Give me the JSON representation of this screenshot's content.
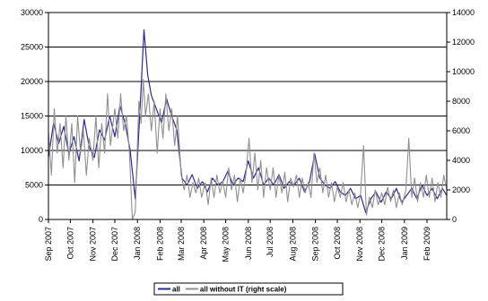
{
  "chart_data": {
    "type": "line",
    "title": "",
    "xlabel": "",
    "ylabel": "",
    "ylim_left": [
      0,
      30000
    ],
    "ylim_right": [
      0,
      14000
    ],
    "y_ticks_left": [
      "0",
      "5000",
      "10000",
      "15000",
      "20000",
      "25000",
      "30000"
    ],
    "y_ticks_right": [
      "0",
      "2000",
      "4000",
      "6000",
      "8000",
      "10000",
      "12000",
      "14000"
    ],
    "x_ticks": [
      "Sep 2007",
      "Oct 2007",
      "Nov 2007",
      "Dec 2007",
      "Jan 2008",
      "Feb 2008",
      "Mar 2008",
      "Apr 2008",
      "May 2008",
      "Jun 2008",
      "Jul 2008",
      "Aug 2008",
      "Sep 2008",
      "Oct 2008",
      "Nov 2008",
      "Dec 2008",
      "Jan 2009",
      "Feb 2009"
    ],
    "x_range": [
      "2007-09-01",
      "2009-02-28"
    ],
    "grid": "horizontal",
    "legend_position": "bottom",
    "series": [
      {
        "name": "all",
        "axis": "left",
        "color": "#2b2b8f",
        "points": [
          [
            "2007-09-01",
            9000
          ],
          [
            "2007-09-08",
            14000
          ],
          [
            "2007-09-15",
            11000
          ],
          [
            "2007-09-22",
            13500
          ],
          [
            "2007-09-29",
            9500
          ],
          [
            "2007-10-06",
            12000
          ],
          [
            "2007-10-13",
            8500
          ],
          [
            "2007-10-20",
            14500
          ],
          [
            "2007-10-27",
            10500
          ],
          [
            "2007-11-03",
            9000
          ],
          [
            "2007-11-10",
            13000
          ],
          [
            "2007-11-17",
            11500
          ],
          [
            "2007-11-24",
            15000
          ],
          [
            "2007-12-01",
            12000
          ],
          [
            "2007-12-08",
            16500
          ],
          [
            "2007-12-15",
            14000
          ],
          [
            "2007-12-22",
            10000
          ],
          [
            "2007-12-29",
            3000
          ],
          [
            "2008-01-05",
            17000
          ],
          [
            "2008-01-10",
            27500
          ],
          [
            "2008-01-15",
            21000
          ],
          [
            "2008-01-20",
            18000
          ],
          [
            "2008-01-27",
            16000
          ],
          [
            "2008-02-03",
            14000
          ],
          [
            "2008-02-10",
            17500
          ],
          [
            "2008-02-17",
            15000
          ],
          [
            "2008-02-24",
            13000
          ],
          [
            "2008-03-02",
            6000
          ],
          [
            "2008-03-09",
            5000
          ],
          [
            "2008-03-16",
            6500
          ],
          [
            "2008-03-23",
            4500
          ],
          [
            "2008-03-30",
            5500
          ],
          [
            "2008-04-06",
            4000
          ],
          [
            "2008-04-13",
            6000
          ],
          [
            "2008-04-20",
            5000
          ],
          [
            "2008-04-27",
            5500
          ],
          [
            "2008-05-04",
            7000
          ],
          [
            "2008-05-11",
            5000
          ],
          [
            "2008-05-18",
            6000
          ],
          [
            "2008-05-25",
            5500
          ],
          [
            "2008-06-01",
            8500
          ],
          [
            "2008-06-08",
            6000
          ],
          [
            "2008-06-15",
            7500
          ],
          [
            "2008-06-22",
            5000
          ],
          [
            "2008-06-29",
            6000
          ],
          [
            "2008-07-06",
            5000
          ],
          [
            "2008-07-13",
            6500
          ],
          [
            "2008-07-20",
            4500
          ],
          [
            "2008-07-27",
            5500
          ],
          [
            "2008-08-03",
            5000
          ],
          [
            "2008-08-10",
            6000
          ],
          [
            "2008-08-17",
            4000
          ],
          [
            "2008-08-24",
            5500
          ],
          [
            "2008-08-31",
            9500
          ],
          [
            "2008-09-07",
            6000
          ],
          [
            "2008-09-14",
            5000
          ],
          [
            "2008-09-21",
            4500
          ],
          [
            "2008-09-28",
            5500
          ],
          [
            "2008-10-05",
            4000
          ],
          [
            "2008-10-12",
            3500
          ],
          [
            "2008-10-19",
            4500
          ],
          [
            "2008-10-26",
            3000
          ],
          [
            "2008-11-02",
            3500
          ],
          [
            "2008-11-09",
            1000
          ],
          [
            "2008-11-16",
            3000
          ],
          [
            "2008-11-23",
            4000
          ],
          [
            "2008-11-30",
            2500
          ],
          [
            "2008-12-07",
            4000
          ],
          [
            "2008-12-14",
            3000
          ],
          [
            "2008-12-21",
            4500
          ],
          [
            "2008-12-28",
            2500
          ],
          [
            "2009-01-04",
            3500
          ],
          [
            "2009-01-11",
            4500
          ],
          [
            "2009-01-18",
            3000
          ],
          [
            "2009-01-25",
            5000
          ],
          [
            "2009-02-01",
            3500
          ],
          [
            "2009-02-08",
            4500
          ],
          [
            "2009-02-15",
            3000
          ],
          [
            "2009-02-22",
            4500
          ],
          [
            "2009-02-28",
            3500
          ]
        ]
      },
      {
        "name": "all without IT (right scale)",
        "axis": "right",
        "color": "#909090",
        "points": [
          [
            "2007-09-01",
            6000
          ],
          [
            "2007-09-05",
            3000
          ],
          [
            "2007-09-09",
            7500
          ],
          [
            "2007-09-13",
            4500
          ],
          [
            "2007-09-17",
            6500
          ],
          [
            "2007-09-21",
            3500
          ],
          [
            "2007-09-25",
            7000
          ],
          [
            "2007-09-29",
            4000
          ],
          [
            "2007-10-03",
            6500
          ],
          [
            "2007-10-07",
            2500
          ],
          [
            "2007-10-11",
            7000
          ],
          [
            "2007-10-15",
            4500
          ],
          [
            "2007-10-19",
            6000
          ],
          [
            "2007-10-23",
            3000
          ],
          [
            "2007-10-27",
            5500
          ],
          [
            "2007-11-01",
            4000
          ],
          [
            "2007-11-05",
            7000
          ],
          [
            "2007-11-09",
            3500
          ],
          [
            "2007-11-13",
            6500
          ],
          [
            "2007-11-17",
            4500
          ],
          [
            "2007-11-21",
            8500
          ],
          [
            "2007-11-25",
            5000
          ],
          [
            "2007-12-01",
            7500
          ],
          [
            "2007-12-05",
            5500
          ],
          [
            "2007-12-09",
            8500
          ],
          [
            "2007-12-13",
            6000
          ],
          [
            "2007-12-17",
            7000
          ],
          [
            "2007-12-21",
            4500
          ],
          [
            "2007-12-25",
            0
          ],
          [
            "2007-12-29",
            500
          ],
          [
            "2008-01-03",
            8000
          ],
          [
            "2008-01-06",
            6500
          ],
          [
            "2008-01-09",
            9500
          ],
          [
            "2008-01-12",
            7000
          ],
          [
            "2008-01-16",
            8500
          ],
          [
            "2008-01-20",
            6000
          ],
          [
            "2008-01-24",
            8000
          ],
          [
            "2008-01-28",
            4500
          ],
          [
            "2008-02-01",
            7500
          ],
          [
            "2008-02-05",
            5500
          ],
          [
            "2008-02-09",
            8500
          ],
          [
            "2008-02-13",
            6000
          ],
          [
            "2008-02-17",
            7500
          ],
          [
            "2008-02-21",
            5000
          ],
          [
            "2008-02-25",
            7000
          ],
          [
            "2008-03-01",
            3000
          ],
          [
            "2008-03-05",
            2000
          ],
          [
            "2008-03-09",
            3000
          ],
          [
            "2008-03-13",
            1500
          ],
          [
            "2008-03-17",
            2500
          ],
          [
            "2008-03-21",
            1800
          ],
          [
            "2008-03-25",
            2800
          ],
          [
            "2008-03-29",
            1500
          ],
          [
            "2008-04-03",
            2500
          ],
          [
            "2008-04-07",
            1000
          ],
          [
            "2008-04-11",
            2800
          ],
          [
            "2008-04-15",
            1500
          ],
          [
            "2008-04-19",
            3000
          ],
          [
            "2008-04-23",
            1800
          ],
          [
            "2008-04-27",
            2600
          ],
          [
            "2008-05-01",
            1500
          ],
          [
            "2008-05-05",
            3500
          ],
          [
            "2008-05-09",
            2000
          ],
          [
            "2008-05-13",
            3000
          ],
          [
            "2008-05-17",
            1200
          ],
          [
            "2008-05-21",
            2800
          ],
          [
            "2008-05-25",
            1800
          ],
          [
            "2008-05-29",
            3200
          ],
          [
            "2008-06-02",
            5500
          ],
          [
            "2008-06-06",
            2500
          ],
          [
            "2008-06-10",
            4500
          ],
          [
            "2008-06-14",
            2000
          ],
          [
            "2008-06-18",
            4000
          ],
          [
            "2008-06-22",
            1500
          ],
          [
            "2008-06-26",
            3500
          ],
          [
            "2008-07-01",
            2000
          ],
          [
            "2008-07-05",
            3500
          ],
          [
            "2008-07-09",
            1500
          ],
          [
            "2008-07-13",
            3000
          ],
          [
            "2008-07-17",
            1800
          ],
          [
            "2008-07-21",
            3200
          ],
          [
            "2008-07-25",
            1200
          ],
          [
            "2008-07-29",
            2800
          ],
          [
            "2008-08-02",
            2200
          ],
          [
            "2008-08-06",
            3000
          ],
          [
            "2008-08-10",
            1500
          ],
          [
            "2008-08-14",
            2800
          ],
          [
            "2008-08-18",
            1800
          ],
          [
            "2008-08-22",
            2500
          ],
          [
            "2008-08-26",
            1500
          ],
          [
            "2008-08-30",
            4500
          ],
          [
            "2008-09-03",
            2500
          ],
          [
            "2008-09-07",
            3500
          ],
          [
            "2008-09-11",
            1800
          ],
          [
            "2008-09-15",
            3000
          ],
          [
            "2008-09-19",
            1500
          ],
          [
            "2008-09-23",
            2500
          ],
          [
            "2008-09-27",
            1200
          ],
          [
            "2008-10-01",
            2200
          ],
          [
            "2008-10-05",
            1500
          ],
          [
            "2008-10-09",
            2500
          ],
          [
            "2008-10-13",
            1200
          ],
          [
            "2008-10-17",
            2000
          ],
          [
            "2008-10-21",
            1000
          ],
          [
            "2008-10-25",
            1800
          ],
          [
            "2008-10-29",
            800
          ],
          [
            "2008-11-02",
            1800
          ],
          [
            "2008-11-06",
            5000
          ],
          [
            "2008-11-10",
            300
          ],
          [
            "2008-11-14",
            1500
          ],
          [
            "2008-11-18",
            800
          ],
          [
            "2008-11-22",
            2000
          ],
          [
            "2008-11-26",
            1000
          ],
          [
            "2008-12-01",
            1800
          ],
          [
            "2008-12-05",
            1000
          ],
          [
            "2008-12-09",
            2200
          ],
          [
            "2008-12-13",
            1200
          ],
          [
            "2008-12-17",
            2000
          ],
          [
            "2008-12-21",
            800
          ],
          [
            "2008-12-25",
            1800
          ],
          [
            "2008-12-29",
            1000
          ],
          [
            "2009-01-03",
            2000
          ],
          [
            "2009-01-07",
            5500
          ],
          [
            "2009-01-11",
            1500
          ],
          [
            "2009-01-15",
            2800
          ],
          [
            "2009-01-19",
            1200
          ],
          [
            "2009-01-23",
            2500
          ],
          [
            "2009-01-27",
            1500
          ],
          [
            "2009-01-31",
            3000
          ],
          [
            "2009-02-04",
            1500
          ],
          [
            "2009-02-08",
            2800
          ],
          [
            "2009-02-12",
            1200
          ],
          [
            "2009-02-16",
            2500
          ],
          [
            "2009-02-20",
            1500
          ],
          [
            "2009-02-24",
            3000
          ],
          [
            "2009-02-28",
            2000
          ]
        ]
      }
    ]
  }
}
